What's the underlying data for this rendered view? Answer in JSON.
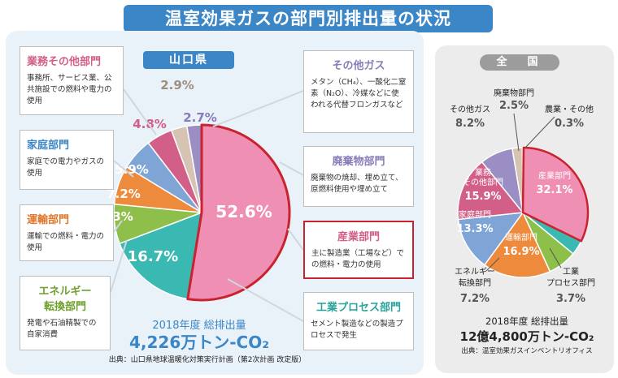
{
  "title": "温室効果ガスの部門別排出量の状況",
  "region_label": "山口県",
  "national_label": "全　国",
  "colors": {
    "industry": "#ef8fb3",
    "industrial_process": "#3ab8b2",
    "energy_conversion": "#8dbf4a",
    "transport": "#ee8a3c",
    "household": "#7ea5d6",
    "business": "#d15f88",
    "waste": "#d7c3b3",
    "other_gas": "#9a8ec4",
    "accent": "#3b86c6",
    "highlight": "#c8232e"
  },
  "boxes": {
    "business": {
      "title": "業務その他部門",
      "desc": "事務所、サービス業、公共施設での燃料や電力の使用"
    },
    "household": {
      "title": "家庭部門",
      "desc": "家庭での電力やガスの使用"
    },
    "transport": {
      "title": "運輸部門",
      "desc": "運輸での燃料・電力の使用"
    },
    "energy": {
      "title": "エネルギー転換部門",
      "title_line1": "エネルギー",
      "title_line2": "転換部門",
      "desc": "発電や石油精製での自家消費"
    },
    "other_gas": {
      "title": "その他ガス",
      "desc": "メタン（CH₄）、一酸化二窒素（N₂O）、冷媒などに使われる代替フロンガスなど"
    },
    "waste": {
      "title": "廃棄物部門",
      "desc": "廃棄物の焼却、埋め立て、原燃料使用や埋め立て"
    },
    "industry": {
      "title": "産業部門",
      "desc": "主に製造業（工場など）での燃料・電力の使用"
    },
    "industrial_process": {
      "title": "工業プロセス部門",
      "desc": "セメント製造などの製造プロセスで発生"
    }
  },
  "chart_data": [
    {
      "type": "pie",
      "region": "山口県",
      "unit": "%",
      "slices": [
        {
          "key": "industry",
          "label": "産業部門",
          "value": 52.6,
          "display": "52.6%"
        },
        {
          "key": "industrial_process",
          "label": "工業プロセス部門",
          "value": 16.7,
          "display": "16.7%"
        },
        {
          "key": "energy_conversion",
          "label": "エネルギー転換部門",
          "value": 7.3,
          "display": "7.3%"
        },
        {
          "key": "transport",
          "label": "運輸部門",
          "value": 7.2,
          "display": "7.2%"
        },
        {
          "key": "household",
          "label": "家庭部門",
          "value": 5.9,
          "display": "5.9%"
        },
        {
          "key": "business",
          "label": "業務その他部門",
          "value": 4.8,
          "display": "4.8%"
        },
        {
          "key": "waste",
          "label": "廃棄物部門",
          "value": 2.9,
          "display": "2.9%"
        },
        {
          "key": "other_gas",
          "label": "その他ガス",
          "value": 2.7,
          "display": "2.7%"
        }
      ],
      "total_year": "2018年度 総排出量",
      "total_value": "4,226万トン-CO₂",
      "source": "出典：山口県地球温暖化対策実行計画（第2次計画 改定版）"
    },
    {
      "type": "pie",
      "region": "全国",
      "unit": "%",
      "slices": [
        {
          "key": "industry",
          "label": "産業部門",
          "value": 32.1,
          "display": "32.1%"
        },
        {
          "key": "industrial_process",
          "label": "工業プロセス部門",
          "value": 3.7,
          "display": "3.7%"
        },
        {
          "key": "energy_conversion",
          "label": "エネルギー転換部門",
          "value": 7.2,
          "display": "7.2%"
        },
        {
          "key": "transport",
          "label": "運輸部門",
          "value": 16.9,
          "display": "16.9%"
        },
        {
          "key": "household",
          "label": "家庭部門",
          "value": 13.3,
          "display": "13.3%"
        },
        {
          "key": "business",
          "label": "業務その他部門",
          "value": 15.9,
          "display": "15.9%"
        },
        {
          "key": "other_gas",
          "label": "その他ガス",
          "value": 8.2,
          "display": "8.2%"
        },
        {
          "key": "waste",
          "label": "廃棄物部門",
          "value": 2.5,
          "display": "2.5%"
        },
        {
          "key": "agriculture",
          "label": "農業・その他",
          "value": 0.3,
          "display": "0.3%"
        }
      ],
      "labels": {
        "industry": "産業部門",
        "transport": "運輸部門",
        "household": "家庭部門",
        "business_l1": "業務",
        "business_l2": "その他部門",
        "other_gas": "その他ガス",
        "waste": "廃棄物部門",
        "agriculture": "農業・その他",
        "energy_l1": "エネルギー",
        "energy_l2": "転換部門",
        "process_l1": "工業",
        "process_l2": "プロセス部門"
      },
      "total_year": "2018年度 総排出量",
      "total_value": "12億4,800万トン-CO₂",
      "source": "出典：温室効果ガスインベントリオフィス"
    }
  ]
}
